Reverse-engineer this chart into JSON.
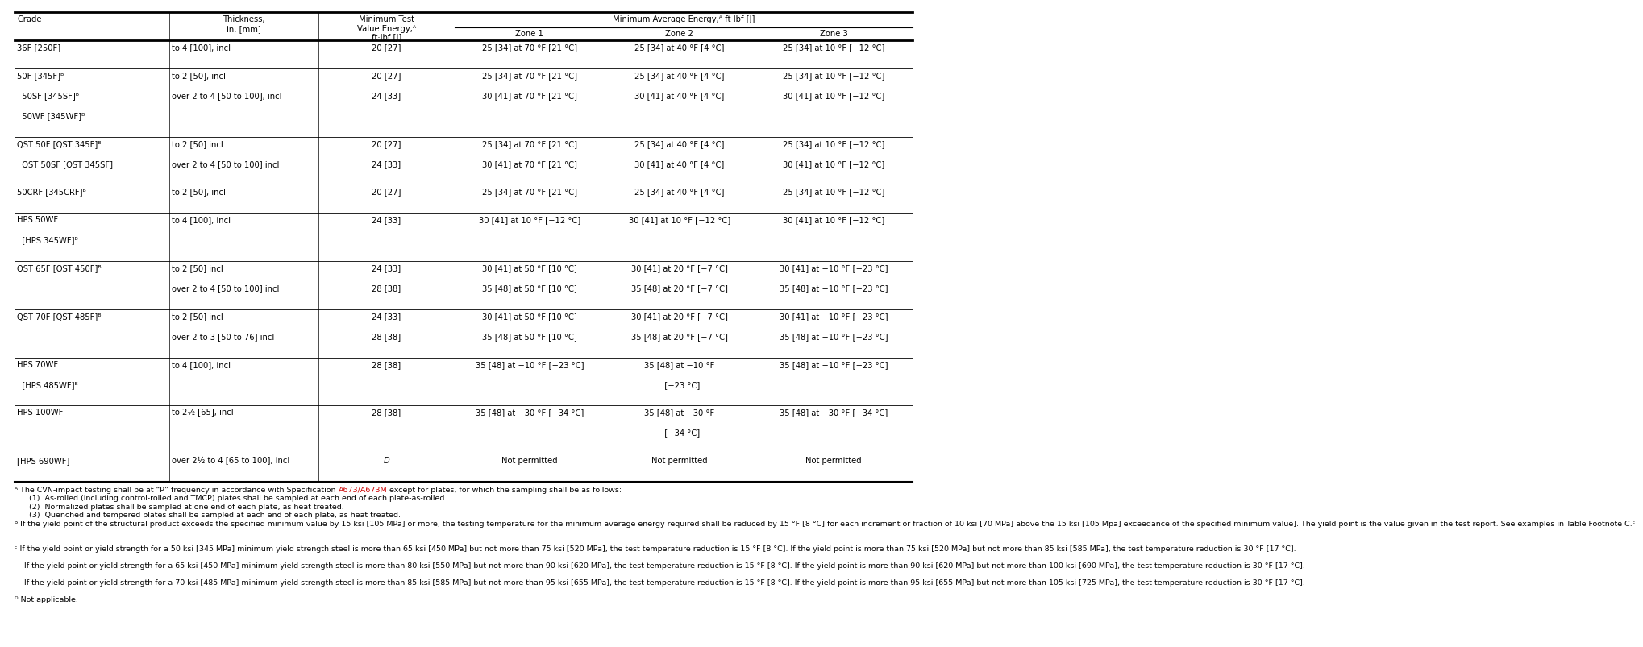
{
  "col_starts_rel": [
    0.0,
    0.172,
    0.338,
    0.49,
    0.657,
    0.824
  ],
  "col_ends_rel": [
    0.172,
    0.338,
    0.49,
    0.657,
    0.824,
    1.0
  ],
  "rows": [
    {
      "grade": [
        "36F [250F]"
      ],
      "thickness": [
        "to 4 [100], incl"
      ],
      "min_test": [
        "20 [27]"
      ],
      "zone1": [
        "25 [34] at 70 °F [21 °C]"
      ],
      "zone2": [
        "25 [34] at 40 °F [4 °C]"
      ],
      "zone3": [
        "25 [34] at 10 °F [−12 °C]"
      ]
    },
    {
      "grade": [
        "50F [345F]ᴮ",
        "  50SF [345SF]ᴮ",
        "  50WF [345WF]ᴮ"
      ],
      "thickness": [
        "to 2 [50], incl",
        "over 2 to 4 [50 to 100], incl",
        ""
      ],
      "min_test": [
        "20 [27]",
        "24 [33]",
        ""
      ],
      "zone1": [
        "25 [34] at 70 °F [21 °C]",
        "30 [41] at 70 °F [21 °C]",
        ""
      ],
      "zone2": [
        "25 [34] at 40 °F [4 °C]",
        "30 [41] at 40 °F [4 °C]",
        ""
      ],
      "zone3": [
        "25 [34] at 10 °F [−12 °C]",
        "30 [41] at 10 °F [−12 °C]",
        ""
      ]
    },
    {
      "grade": [
        "QST 50F [QST 345F]ᴮ",
        "  QST 50SF [QST 345SF]"
      ],
      "thickness": [
        "to 2 [50] incl",
        "over 2 to 4 [50 to 100] incl"
      ],
      "min_test": [
        "20 [27]",
        "24 [33]"
      ],
      "zone1": [
        "25 [34] at 70 °F [21 °C]",
        "30 [41] at 70 °F [21 °C]"
      ],
      "zone2": [
        "25 [34] at 40 °F [4 °C]",
        "30 [41] at 40 °F [4 °C]"
      ],
      "zone3": [
        "25 [34] at 10 °F [−12 °C]",
        "30 [41] at 10 °F [−12 °C]"
      ]
    },
    {
      "grade": [
        "50CRF [345CRF]ᴮ"
      ],
      "thickness": [
        "to 2 [50], incl"
      ],
      "min_test": [
        "20 [27]"
      ],
      "zone1": [
        "25 [34] at 70 °F [21 °C]"
      ],
      "zone2": [
        "25 [34] at 40 °F [4 °C]"
      ],
      "zone3": [
        "25 [34] at 10 °F [−12 °C]"
      ]
    },
    {
      "grade": [
        "HPS 50WF",
        "  [HPS 345WF]ᴮ"
      ],
      "thickness": [
        "to 4 [100], incl",
        ""
      ],
      "min_test": [
        "24 [33]",
        ""
      ],
      "zone1": [
        "30 [41] at 10 °F [−12 °C]",
        ""
      ],
      "zone2": [
        "30 [41] at 10 °F [−12 °C]",
        ""
      ],
      "zone3": [
        "30 [41] at 10 °F [−12 °C]",
        ""
      ]
    },
    {
      "grade": [
        "QST 65F [QST 450F]ᴮ",
        ""
      ],
      "thickness": [
        "to 2 [50] incl",
        "over 2 to 4 [50 to 100] incl"
      ],
      "min_test": [
        "24 [33]",
        "28 [38]"
      ],
      "zone1": [
        "30 [41] at 50 °F [10 °C]",
        "35 [48] at 50 °F [10 °C]"
      ],
      "zone2": [
        "30 [41] at 20 °F [−7 °C]",
        "35 [48] at 20 °F [−7 °C]"
      ],
      "zone3": [
        "30 [41] at −10 °F [−23 °C]",
        "35 [48] at −10 °F [−23 °C]"
      ]
    },
    {
      "grade": [
        "QST 70F [QST 485F]ᴮ",
        ""
      ],
      "thickness": [
        "to 2 [50] incl",
        "over 2 to 3 [50 to 76] incl"
      ],
      "min_test": [
        "24 [33]",
        "28 [38]"
      ],
      "zone1": [
        "30 [41] at 50 °F [10 °C]",
        "35 [48] at 50 °F [10 °C]"
      ],
      "zone2": [
        "30 [41] at 20 °F [−7 °C]",
        "35 [48] at 20 °F [−7 °C]"
      ],
      "zone3": [
        "30 [41] at −10 °F [−23 °C]",
        "35 [48] at −10 °F [−23 °C]"
      ]
    },
    {
      "grade": [
        "HPS 70WF",
        "  [HPS 485WF]ᴮ"
      ],
      "thickness": [
        "to 4 [100], incl",
        ""
      ],
      "min_test": [
        "28 [38]",
        ""
      ],
      "zone1": [
        "35 [48] at −10 °F [−23 °C]",
        ""
      ],
      "zone2": [
        "35 [48] at −10 °F",
        "  [−23 °C]"
      ],
      "zone3": [
        "35 [48] at −10 °F [−23 °C]",
        ""
      ]
    },
    {
      "grade": [
        "HPS 100WF"
      ],
      "thickness": [
        "to 2½ [65], incl"
      ],
      "min_test": [
        "28 [38]"
      ],
      "zone1": [
        "35 [48] at −30 °F [−34 °C]"
      ],
      "zone2": [
        "35 [48] at −30 °F",
        "  [−34 °C]"
      ],
      "zone3": [
        "35 [48] at −30 °F [−34 °C]"
      ]
    },
    {
      "grade": [
        "[HPS 690WF]"
      ],
      "thickness": [
        "over 2½ to 4 [65 to 100], incl"
      ],
      "min_test": [
        "D"
      ],
      "zone1": [
        "Not permitted"
      ],
      "zone2": [
        "Not permitted"
      ],
      "zone3": [
        "Not permitted"
      ]
    }
  ],
  "footnote_A_pre": "ᴬ The CVN-impact testing shall be at “P” frequency in accordance with Specification ",
  "footnote_A_link": "A673/A673M",
  "footnote_A_post": " except for plates, for which the sampling shall be as follows:",
  "footnote_A_items": [
    "      (1)  As-rolled (including control-rolled and TMCP) plates shall be sampled at each end of each plate-as-rolled.",
    "      (2)  Normalized plates shall be sampled at one end of each plate, as heat treated.",
    "      (3)  Quenched and tempered plates shall be sampled at each end of each plate, as heat treated."
  ],
  "footnote_B": "ᴮ If the yield point of the structural product exceeds the specified minimum value by 15 ksi [105 MPa] or more, the testing temperature for the minimum average energy required shall be reduced by 15 °F [8 °C] for each increment or fraction of 10 ksi [70 MPa] above the 15 ksi [105 Mpa] exceedance of the specified minimum value]. The yield point is the value given in the test report. See examples in Table Footnote C.ᶜ",
  "footnote_C1": "ᶜ If the yield point or yield strength for a 50 ksi [345 MPa] minimum yield strength steel is more than 65 ksi [450 MPa] but not more than 75 ksi [520 MPa], the test temperature reduction is 15 °F [8 °C]. If the yield point is more than 75 ksi [520 MPa] but not more than 85 ksi [585 MPa], the test temperature reduction is 30 °F [17 °C].",
  "footnote_C2": "    If the yield point or yield strength for a 65 ksi [450 MPa] minimum yield strength steel is more than 80 ksi [550 MPa] but not more than 90 ksi [620 MPa], the test temperature reduction is 15 °F [8 °C]. If the yield point is more than 90 ksi [620 MPa] but not more than 100 ksi [690 MPa], the test temperature reduction is 30 °F [17 °C].",
  "footnote_C3": "    If the yield point or yield strength for a 70 ksi [485 MPa] minimum yield strength steel is more than 85 ksi [585 MPa] but not more than 95 ksi [655 MPa], the test temperature reduction is 15 °F [8 °C]. If the yield point is more than 95 ksi [655 MPa] but not more than 105 ksi [725 MPa], the test temperature reduction is 30 °F [17 °C].",
  "footnote_D": "ᴰ Not applicable.",
  "background": "#ffffff",
  "text_color": "#000000",
  "link_color": "#cc0000",
  "line_color": "#000000",
  "font_size": 7.2,
  "foot_font_size": 6.8
}
